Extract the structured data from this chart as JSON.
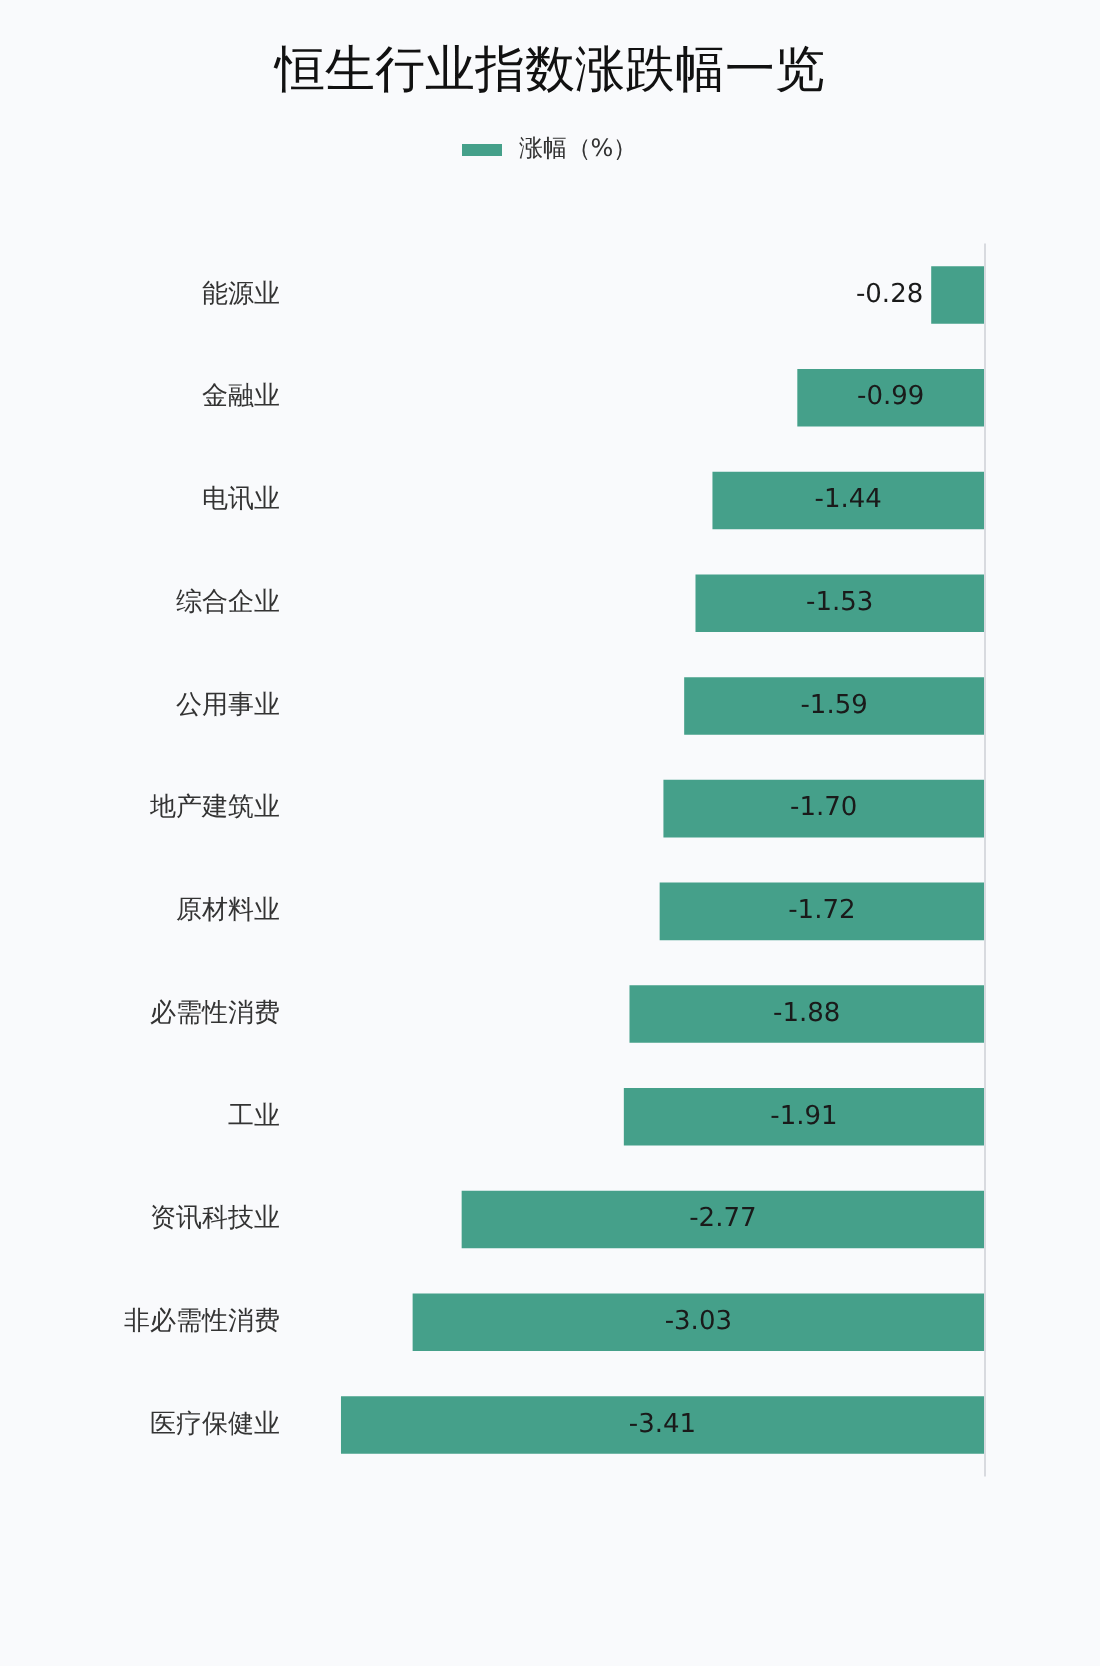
{
  "chart_data": {
    "type": "bar",
    "orientation": "horizontal",
    "title": "恒生行业指数涨跌幅一览",
    "categories": [
      "能源业",
      "金融业",
      "电讯业",
      "综合企业",
      "公用事业",
      "地产建筑业",
      "原材料业",
      "必需性消费",
      "工业",
      "资讯科技业",
      "非必需性消费",
      "医疗保健业"
    ],
    "series": [
      {
        "name": "涨幅（%）",
        "color": "#45a08a",
        "values": [
          -0.28,
          -0.99,
          -1.44,
          -1.53,
          -1.59,
          -1.7,
          -1.72,
          -1.88,
          -1.91,
          -2.77,
          -3.03,
          -3.41
        ],
        "value_labels": [
          "-0.28",
          "-0.99",
          "-1.44",
          "-1.53",
          "-1.59",
          "-1.70",
          "-1.72",
          "-1.88",
          "-1.91",
          "-2.77",
          "-3.03",
          "-3.41"
        ]
      }
    ],
    "tick_labels": "y",
    "grid": false,
    "legend": "top"
  }
}
